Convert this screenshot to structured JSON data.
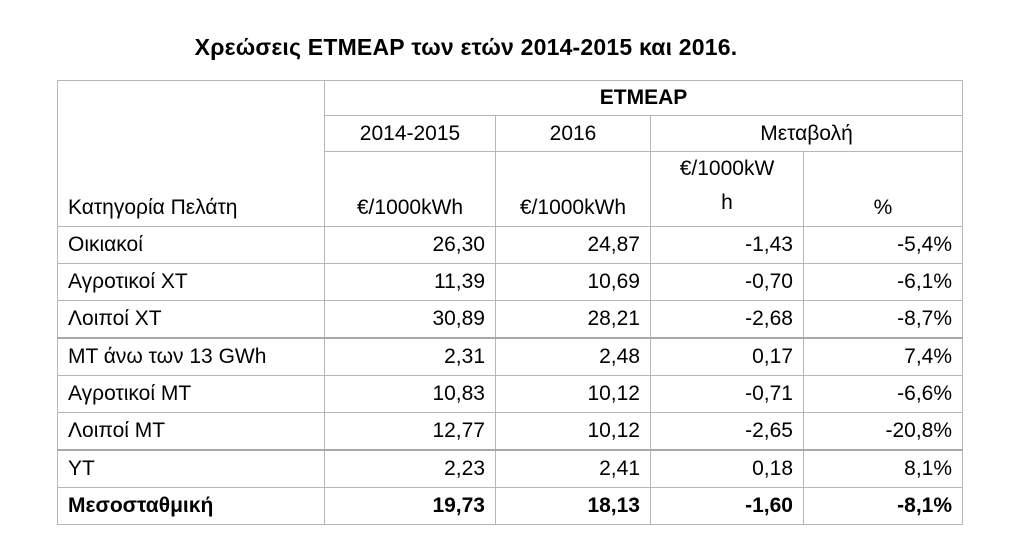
{
  "title": "Χρεώσεις ΕΤΜΕΑΡ των ετών 2014-2015 και 2016.",
  "table": {
    "group_header": "ΕΤΜΕΑΡ",
    "category_header": "Κατηγορία Πελάτη",
    "col_2014_2015": "2014-2015",
    "col_2016": "2016",
    "col_change": "Μεταβολή",
    "unit_2014_2015": "€/1000kWh",
    "unit_2016": "€/1000kWh",
    "unit_change_line1": "€/1000kW",
    "unit_change_line2": "h",
    "unit_percent": "%",
    "rows": [
      {
        "category": "Οικιακοί",
        "v2014_2015": "26,30",
        "v2016": "24,87",
        "change": "-1,43",
        "percent": "-5,4%"
      },
      {
        "category": "Αγροτικοί ΧΤ",
        "v2014_2015": "11,39",
        "v2016": "10,69",
        "change": "-0,70",
        "percent": "-6,1%"
      },
      {
        "category": "Λοιποί ΧΤ",
        "v2014_2015": "30,89",
        "v2016": "28,21",
        "change": "-2,68",
        "percent": "-8,7%"
      },
      {
        "category": "ΜΤ άνω των 13 GWh",
        "v2014_2015": "2,31",
        "v2016": "2,48",
        "change": "0,17",
        "percent": "7,4%"
      },
      {
        "category": "Αγροτικοί ΜΤ",
        "v2014_2015": "10,83",
        "v2016": "10,12",
        "change": "-0,71",
        "percent": "-6,6%"
      },
      {
        "category": "Λοιποί ΜΤ",
        "v2014_2015": "12,77",
        "v2016": "10,12",
        "change": "-2,65",
        "percent": "-20,8%"
      },
      {
        "category": "ΥΤ",
        "v2014_2015": "2,23",
        "v2016": "2,41",
        "change": "0,18",
        "percent": "8,1%"
      },
      {
        "category": "Μεσοσταθμική",
        "v2014_2015": "19,73",
        "v2016": "18,13",
        "change": "-1,60",
        "percent": "-8,1%"
      }
    ]
  }
}
